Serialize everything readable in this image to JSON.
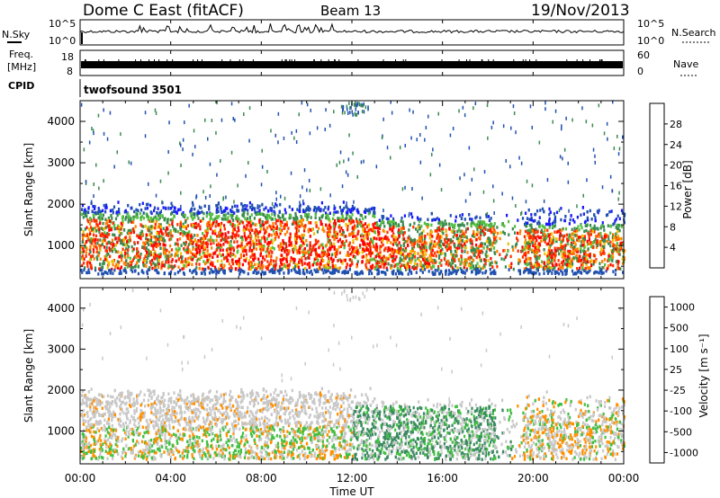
{
  "header": {
    "title": "Dome C East (fitACF)",
    "beam": "Beam 13",
    "date": "19/Nov/2013"
  },
  "top_panels": {
    "nsky": {
      "label": "N.Sky",
      "left_ticks": [
        "10^5",
        "10^0"
      ],
      "right_ticks": [
        "10^5",
        "10^0"
      ],
      "right_label": "N.Search"
    },
    "freq": {
      "label_line1": "Freq.",
      "label_line2": "[MHz]",
      "left_ticks": [
        "18",
        "8"
      ],
      "right_ticks": [
        "60",
        "0"
      ],
      "right_label": "Nave"
    },
    "cpid": {
      "label": "CPID",
      "program": "twofsound 3501"
    }
  },
  "x_axis": {
    "label": "Time UT",
    "ticks": [
      "00:00",
      "04:00",
      "08:00",
      "12:00",
      "16:00",
      "20:00",
      "00:00"
    ]
  },
  "colors": {
    "power": [
      "#1a1aff",
      "#2050b0",
      "#3a8a50",
      "#54c040",
      "#f0c000",
      "#ff8000",
      "#ff3000",
      "#ff0000"
    ],
    "velocity": [
      "#ff1010",
      "#ff5000",
      "#ff9000",
      "#c8c8c8",
      "#c8c8c8",
      "#40c040",
      "#3a8a60",
      "#2a50b0"
    ]
  },
  "chart_data": [
    {
      "type": "heatmap",
      "name": "power",
      "ylabel": "Slant Range [km]",
      "yticks": [
        "1000",
        "2000",
        "3000",
        "4000"
      ],
      "ylim": [
        200,
        4500
      ],
      "xlim": [
        0,
        24
      ],
      "colorbar": {
        "label": "Power [dB]",
        "ticks": [
          "4",
          "8",
          "12",
          "16",
          "20",
          "24",
          "28"
        ]
      }
    },
    {
      "type": "heatmap",
      "name": "velocity",
      "ylabel": "Slant Range [km]",
      "yticks": [
        "1000",
        "2000",
        "3000",
        "4000"
      ],
      "ylim": [
        200,
        4500
      ],
      "xlim": [
        0,
        24
      ],
      "colorbar": {
        "label": "Velocity [m s⁻¹]",
        "ticks": [
          "1000",
          "500",
          "100",
          "25",
          "-25",
          "-100",
          "-500",
          "-1000"
        ]
      }
    }
  ]
}
